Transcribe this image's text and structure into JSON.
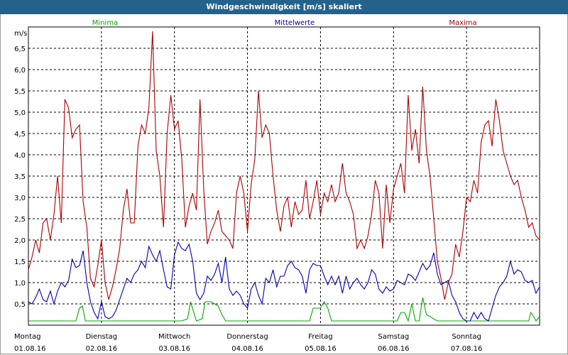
{
  "window": {
    "title": "Windgeschwindigkeit [m/s] skaliert"
  },
  "chart_data": {
    "type": "line",
    "title": "Windgeschwindigkeit [m/s] skaliert",
    "ylabel": "m/s",
    "xlabel": "",
    "ylim": [
      0,
      7
    ],
    "yticks": [
      "0,5",
      "1,0",
      "1,5",
      "2,0",
      "2,5",
      "3,0",
      "3,5",
      "4,0",
      "4,5",
      "5,0",
      "5,5",
      "6,0",
      "6,5"
    ],
    "ytick_values": [
      0.5,
      1.0,
      1.5,
      2.0,
      2.5,
      3.0,
      3.5,
      4.0,
      4.5,
      5.0,
      5.5,
      6.0,
      6.5
    ],
    "xlim": [
      0,
      7
    ],
    "categories": [
      {
        "day": "Montag",
        "date": "01.08.16",
        "x": 0
      },
      {
        "day": "Dienstag",
        "date": "02.08.16",
        "x": 1
      },
      {
        "day": "Mittwoch",
        "date": "03.08.16",
        "x": 2
      },
      {
        "day": "Donnerstag",
        "date": "04.08.16",
        "x": 3
      },
      {
        "day": "Freitag",
        "date": "05.08.16",
        "x": 4
      },
      {
        "day": "Samstag",
        "date": "06.08.16",
        "x": 5
      },
      {
        "day": "Sonntag",
        "date": "07.08.16",
        "x": 6
      }
    ],
    "legend": [
      "Minima",
      "Mittelwerte",
      "Maxima"
    ],
    "legend_position": "top",
    "series": [
      {
        "name": "Minima",
        "color": "#00aa00",
        "x": [
          0,
          0.65,
          0.7,
          0.74,
          0.78,
          1.0,
          1.6,
          1.75,
          1.8,
          1.85,
          1.9,
          2.1,
          2.18,
          2.22,
          2.3,
          2.38,
          2.42,
          2.5,
          2.6,
          2.65,
          2.7,
          3.0,
          3.5,
          3.85,
          3.9,
          3.95,
          4.0,
          4.05,
          4.1,
          4.15,
          4.5,
          4.8,
          5.05,
          5.1,
          5.15,
          5.2,
          5.25,
          5.3,
          5.35,
          5.4,
          5.45,
          5.6,
          6.5,
          6.85,
          6.88,
          6.92,
          6.95,
          7.0
        ],
        "values": [
          0.1,
          0.1,
          0.4,
          0.45,
          0.1,
          0.1,
          0.1,
          0.1,
          0.1,
          0.1,
          0.1,
          0.1,
          0.15,
          0.55,
          0.1,
          0.15,
          0.55,
          0.55,
          0.45,
          0.25,
          0.1,
          0.1,
          0.1,
          0.1,
          0.4,
          0.4,
          0.4,
          0.55,
          0.4,
          0.1,
          0.1,
          0.1,
          0.1,
          0.3,
          0.3,
          0.1,
          0.5,
          0.1,
          0.1,
          0.65,
          0.25,
          0.1,
          0.1,
          0.1,
          0.3,
          0.2,
          0.1,
          0.2
        ]
      },
      {
        "name": "Mittelwerte",
        "color": "#0000aa",
        "x": [
          0,
          0.05,
          0.1,
          0.15,
          0.2,
          0.25,
          0.3,
          0.35,
          0.4,
          0.45,
          0.5,
          0.55,
          0.6,
          0.65,
          0.7,
          0.75,
          0.8,
          0.85,
          0.9,
          0.95,
          1.0,
          1.05,
          1.1,
          1.15,
          1.2,
          1.25,
          1.3,
          1.35,
          1.4,
          1.45,
          1.5,
          1.55,
          1.6,
          1.65,
          1.7,
          1.75,
          1.8,
          1.85,
          1.9,
          1.95,
          2.0,
          2.05,
          2.1,
          2.15,
          2.2,
          2.25,
          2.3,
          2.35,
          2.4,
          2.45,
          2.5,
          2.55,
          2.6,
          2.65,
          2.7,
          2.75,
          2.8,
          2.85,
          2.9,
          2.95,
          3.0,
          3.05,
          3.1,
          3.15,
          3.2,
          3.25,
          3.3,
          3.35,
          3.4,
          3.45,
          3.5,
          3.55,
          3.6,
          3.65,
          3.7,
          3.75,
          3.8,
          3.85,
          3.9,
          3.95,
          4.0,
          4.05,
          4.1,
          4.15,
          4.2,
          4.25,
          4.3,
          4.35,
          4.4,
          4.45,
          4.5,
          4.55,
          4.6,
          4.65,
          4.7,
          4.75,
          4.8,
          4.85,
          4.9,
          4.95,
          5.0,
          5.05,
          5.1,
          5.15,
          5.2,
          5.25,
          5.3,
          5.35,
          5.4,
          5.45,
          5.5,
          5.55,
          5.6,
          5.65,
          5.7,
          5.75,
          5.8,
          5.85,
          5.9,
          5.95,
          6.0,
          6.05,
          6.1,
          6.15,
          6.2,
          6.25,
          6.3,
          6.35,
          6.4,
          6.45,
          6.5,
          6.55,
          6.6,
          6.65,
          6.7,
          6.75,
          6.8,
          6.85,
          6.9,
          6.95,
          7.0
        ],
        "values": [
          0.55,
          0.5,
          0.65,
          0.85,
          0.6,
          0.55,
          0.8,
          0.5,
          0.8,
          1.0,
          0.9,
          1.05,
          1.55,
          1.35,
          1.4,
          1.75,
          1.0,
          0.55,
          0.3,
          0.15,
          0.55,
          0.2,
          0.15,
          0.2,
          0.35,
          0.6,
          0.85,
          1.1,
          1.0,
          1.2,
          1.3,
          1.5,
          1.35,
          1.85,
          1.65,
          1.5,
          1.75,
          1.3,
          0.9,
          0.85,
          1.65,
          1.95,
          1.8,
          1.75,
          1.9,
          1.5,
          0.75,
          0.6,
          0.75,
          1.15,
          1.05,
          1.2,
          1.45,
          1.0,
          1.6,
          0.85,
          0.7,
          0.8,
          0.7,
          0.5,
          0.4,
          0.85,
          1.0,
          0.7,
          0.5,
          1.1,
          1.0,
          1.3,
          0.9,
          1.15,
          1.15,
          1.4,
          1.5,
          1.35,
          1.3,
          1.15,
          0.75,
          1.3,
          1.45,
          1.4,
          1.4,
          1.15,
          0.95,
          1.15,
          0.95,
          1.15,
          0.75,
          1.15,
          0.85,
          1.0,
          1.1,
          0.95,
          0.85,
          1.0,
          1.3,
          1.2,
          0.85,
          0.75,
          0.9,
          0.8,
          0.85,
          1.05,
          1.0,
          0.95,
          1.2,
          1.15,
          1.05,
          1.25,
          1.45,
          1.3,
          1.4,
          1.7,
          1.2,
          0.95,
          1.0,
          1.05,
          0.7,
          0.55,
          0.3,
          0.15,
          0.1,
          0.1,
          0.3,
          0.15,
          0.3,
          0.15,
          0.1,
          0.4,
          0.7,
          0.9,
          1.0,
          1.15,
          1.5,
          1.2,
          1.3,
          1.25,
          1.05,
          1.0,
          1.05,
          0.75,
          0.9
        ]
      },
      {
        "name": "Maxima",
        "color": "#aa0000",
        "x": [
          0,
          0.05,
          0.1,
          0.15,
          0.2,
          0.25,
          0.3,
          0.35,
          0.4,
          0.45,
          0.5,
          0.55,
          0.6,
          0.65,
          0.7,
          0.75,
          0.8,
          0.85,
          0.9,
          0.95,
          1.0,
          1.05,
          1.1,
          1.15,
          1.2,
          1.25,
          1.3,
          1.35,
          1.4,
          1.45,
          1.5,
          1.55,
          1.6,
          1.65,
          1.7,
          1.75,
          1.8,
          1.85,
          1.9,
          1.95,
          2.0,
          2.05,
          2.1,
          2.15,
          2.2,
          2.25,
          2.3,
          2.35,
          2.4,
          2.45,
          2.5,
          2.55,
          2.6,
          2.65,
          2.7,
          2.75,
          2.8,
          2.85,
          2.9,
          2.95,
          3.0,
          3.05,
          3.1,
          3.15,
          3.2,
          3.25,
          3.3,
          3.35,
          3.4,
          3.45,
          3.5,
          3.55,
          3.6,
          3.65,
          3.7,
          3.75,
          3.8,
          3.85,
          3.9,
          3.95,
          4.0,
          4.05,
          4.1,
          4.15,
          4.2,
          4.25,
          4.3,
          4.35,
          4.4,
          4.45,
          4.5,
          4.55,
          4.6,
          4.65,
          4.7,
          4.75,
          4.8,
          4.85,
          4.9,
          4.95,
          5.0,
          5.05,
          5.1,
          5.15,
          5.2,
          5.25,
          5.3,
          5.35,
          5.4,
          5.45,
          5.5,
          5.55,
          5.6,
          5.65,
          5.7,
          5.75,
          5.8,
          5.85,
          5.9,
          5.95,
          6.0,
          6.05,
          6.1,
          6.15,
          6.2,
          6.25,
          6.3,
          6.35,
          6.4,
          6.45,
          6.5,
          6.55,
          6.6,
          6.65,
          6.7,
          6.75,
          6.8,
          6.85,
          6.9,
          6.95,
          7.0
        ],
        "values": [
          1.3,
          1.6,
          2.0,
          1.7,
          2.4,
          2.5,
          2.0,
          2.6,
          3.5,
          2.4,
          5.3,
          5.1,
          4.4,
          4.6,
          4.7,
          2.9,
          2.3,
          1.1,
          0.9,
          1.4,
          2.0,
          1.0,
          0.6,
          0.9,
          1.3,
          1.8,
          2.7,
          3.2,
          2.4,
          2.4,
          4.2,
          4.7,
          4.5,
          5.1,
          6.9,
          4.1,
          3.5,
          2.3,
          4.5,
          5.4,
          4.6,
          4.8,
          3.9,
          2.3,
          2.8,
          3.1,
          2.7,
          5.3,
          3.2,
          1.9,
          2.2,
          2.4,
          2.7,
          2.2,
          2.1,
          2.0,
          1.8,
          3.1,
          3.5,
          3.1,
          2.2,
          3.3,
          3.9,
          5.5,
          4.4,
          4.7,
          4.5,
          3.5,
          2.7,
          2.2,
          2.8,
          3.0,
          2.3,
          2.9,
          2.6,
          2.7,
          3.4,
          2.5,
          2.9,
          3.4,
          2.6,
          3.1,
          2.9,
          3.3,
          2.9,
          3.1,
          3.8,
          3.1,
          2.9,
          2.6,
          1.8,
          2.0,
          1.8,
          2.1,
          2.6,
          3.4,
          3.1,
          1.8,
          3.3,
          2.4,
          3.2,
          3.5,
          3.8,
          3.1,
          5.4,
          4.1,
          4.6,
          3.8,
          5.6,
          4.1,
          3.5,
          2.5,
          1.5,
          1.1,
          0.6,
          1.0,
          1.2,
          1.9,
          1.6,
          2.2,
          3.0,
          2.9,
          3.4,
          3.1,
          4.3,
          4.7,
          4.8,
          4.2,
          5.3,
          4.8,
          4.1,
          3.8,
          3.5,
          3.3,
          3.4,
          3.0,
          2.7,
          2.3,
          2.4,
          2.1,
          2.0
        ]
      }
    ]
  }
}
